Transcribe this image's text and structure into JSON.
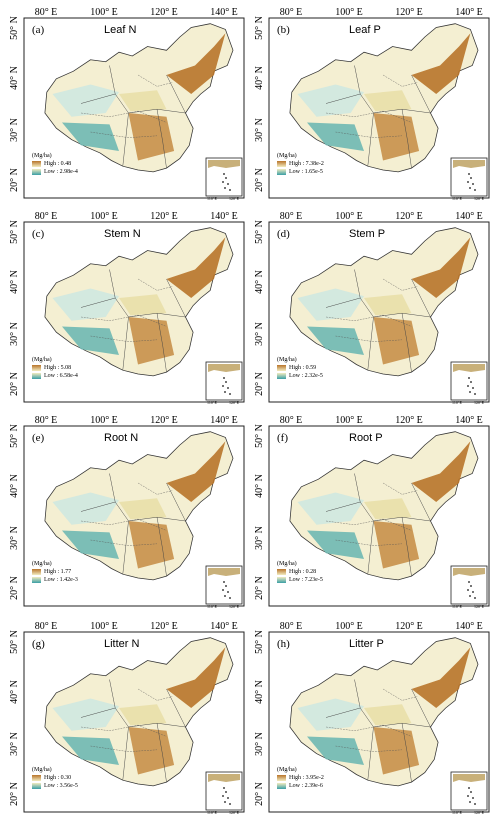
{
  "axes": {
    "lon_ticks": [
      "80° E",
      "100° E",
      "120° E",
      "140° E"
    ],
    "lat_ticks": [
      "50° N",
      "40° N",
      "30° N",
      "20° N"
    ]
  },
  "inset": {
    "lon_ticks": [
      "110°E",
      "120°E"
    ],
    "lat_ticks": [
      "20°N",
      "10°N"
    ]
  },
  "legend_colors": {
    "high": "#b8742a",
    "mid": "#f2ecc0",
    "low": "#3a9fa6"
  },
  "panels": [
    {
      "letter": "(a)",
      "title": "Leaf N",
      "unit": "(Mg/ha)",
      "high": "High : 0.48",
      "low": "Low : 2.98e-4"
    },
    {
      "letter": "(b)",
      "title": "Leaf P",
      "unit": "(Mg/ha)",
      "high": "High : 7.38e-2",
      "low": "Low : 1.65e-5"
    },
    {
      "letter": "(c)",
      "title": "Stem N",
      "unit": "(Mg/ha)",
      "high": "High : 5.08",
      "low": "Low : 6.58e-4"
    },
    {
      "letter": "(d)",
      "title": "Stem P",
      "unit": "(Mg/ha)",
      "high": "High : 0.59",
      "low": "Low : 2.32e-5"
    },
    {
      "letter": "(e)",
      "title": "Root N",
      "unit": "(Mg/ha)",
      "high": "High : 1.77",
      "low": "Low : 1.42e-3"
    },
    {
      "letter": "(f)",
      "title": "Root P",
      "unit": "(Mg/ha)",
      "high": "High : 0.28",
      "low": "Low : 7.23e-5"
    },
    {
      "letter": "(g)",
      "title": "Litter N",
      "unit": "(Mg/ha)",
      "high": "High : 0.30",
      "low": "Low : 3.56e-5"
    },
    {
      "letter": "(h)",
      "title": "Litter P",
      "unit": "(Mg/ha)",
      "high": "High : 3.95e-2",
      "low": "Low : 2.39e-6"
    }
  ]
}
